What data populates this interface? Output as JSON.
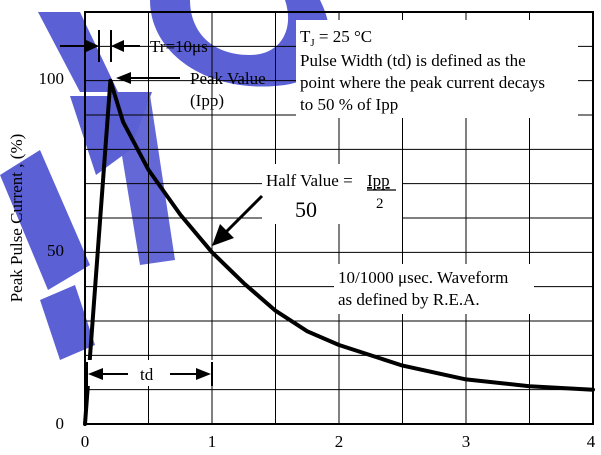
{
  "chart_data": {
    "type": "line",
    "title": "",
    "xlabel": "",
    "ylabel": "Peak Pulse Current , (%)",
    "xlim": [
      0,
      4
    ],
    "ylim": [
      0,
      120
    ],
    "x_ticks": [
      "0",
      "1",
      "2",
      "3",
      "4"
    ],
    "y_ticks": [
      "0",
      "50",
      "100"
    ],
    "grid": true,
    "series": [
      {
        "x": [
          0,
          0.2,
          0.3,
          0.5,
          0.75,
          1.0,
          1.25,
          1.5,
          1.75,
          2.0,
          2.5,
          3.0,
          3.5,
          4.0
        ],
        "y": [
          0,
          100,
          88,
          74,
          61,
          50,
          41,
          33,
          27,
          23,
          17,
          13,
          11,
          10
        ]
      }
    ],
    "annotations": {
      "tr": "Tr=10μs",
      "peak_value_line1": "Peak Value",
      "peak_value_line2": "(Ipp)",
      "tj": "T",
      "tj_sub": "J",
      "tj_rest": " = 25 °C",
      "pulse_width_1": "Pulse Width (td) is defined as the",
      "pulse_width_2": "point where the peak current decays",
      "pulse_width_3": "to 50 % of Ipp",
      "half_value": "Half Value = ",
      "half_value_num": "Ipp",
      "half_value_den": "2",
      "half_value_50": "50",
      "waveform_1": "10/1000 μsec. Waveform",
      "waveform_2": "as defined by R.E.A.",
      "td": "td"
    }
  }
}
